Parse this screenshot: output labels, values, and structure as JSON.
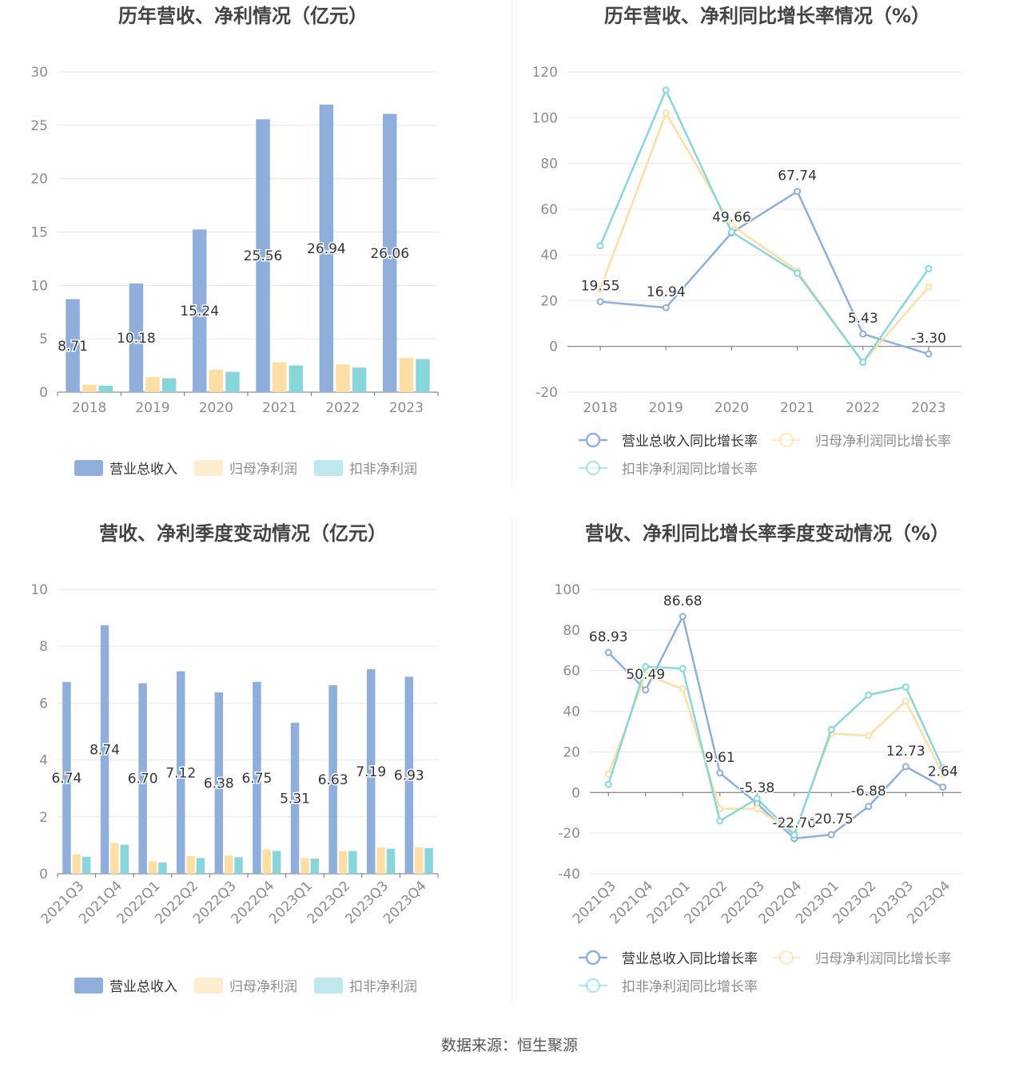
{
  "source_label": "数据来源：恒生聚源",
  "colors": {
    "revenue": "#8FAEDB",
    "netprofit": "#FDDFA6",
    "deducted": "#89D6DA"
  },
  "chart_data": [
    {
      "type": "bar",
      "title": "历年营收、净利情况（亿元）",
      "categories": [
        "2018",
        "2019",
        "2020",
        "2021",
        "2022",
        "2023"
      ],
      "ylim": [
        0,
        30
      ],
      "yticks": [
        0,
        5,
        10,
        15,
        20,
        25,
        30
      ],
      "legend": "bottom",
      "series": [
        {
          "name": "营业总收入",
          "color": "#8FAEDB",
          "labeled": true,
          "values": [
            8.71,
            10.18,
            15.24,
            25.56,
            26.94,
            26.06
          ]
        },
        {
          "name": "归母净利润",
          "color": "#FDDFA6",
          "labeled": false,
          "values": [
            0.7,
            1.4,
            2.1,
            2.8,
            2.6,
            3.2
          ]
        },
        {
          "name": "扣非净利润",
          "color": "#89D6DA",
          "labeled": false,
          "values": [
            0.6,
            1.3,
            1.9,
            2.5,
            2.3,
            3.1
          ]
        }
      ]
    },
    {
      "type": "line",
      "title": "历年营收、净利同比增长率情况（%）",
      "categories": [
        "2018",
        "2019",
        "2020",
        "2021",
        "2022",
        "2023"
      ],
      "ylim": [
        -20,
        120
      ],
      "yticks": [
        -20,
        0,
        20,
        40,
        60,
        80,
        100,
        120
      ],
      "legend": "bottom",
      "series": [
        {
          "name": "营业总收入同比增长率",
          "color": "#8FAEDB",
          "labeled": true,
          "values": [
            19.55,
            16.94,
            49.66,
            67.74,
            5.43,
            -3.3
          ]
        },
        {
          "name": "归母净利润同比增长率",
          "color": "#FDDFA6",
          "labeled": false,
          "values": [
            25,
            102,
            53,
            33,
            -7,
            26
          ]
        },
        {
          "name": "扣非净利润同比增长率",
          "color": "#89D6DA",
          "labeled": false,
          "values": [
            44,
            112,
            50,
            32,
            -7,
            34
          ]
        }
      ]
    },
    {
      "type": "bar",
      "title": "营收、净利季度变动情况（亿元）",
      "categories": [
        "2021Q3",
        "2021Q4",
        "2022Q1",
        "2022Q2",
        "2022Q3",
        "2022Q4",
        "2023Q1",
        "2023Q2",
        "2023Q3",
        "2023Q4"
      ],
      "ylim": [
        0,
        10
      ],
      "yticks": [
        0,
        2,
        4,
        6,
        8,
        10
      ],
      "legend": "bottom",
      "series": [
        {
          "name": "营业总收入",
          "color": "#8FAEDB",
          "labeled": true,
          "values": [
            6.74,
            8.74,
            6.7,
            7.12,
            6.38,
            6.75,
            5.31,
            6.63,
            7.19,
            6.93
          ]
        },
        {
          "name": "归母净利润",
          "color": "#FDDFA6",
          "labeled": false,
          "values": [
            0.68,
            1.08,
            0.44,
            0.62,
            0.64,
            0.85,
            0.55,
            0.8,
            0.92,
            0.93
          ]
        },
        {
          "name": "扣非净利润",
          "color": "#89D6DA",
          "labeled": false,
          "values": [
            0.6,
            1.02,
            0.4,
            0.55,
            0.58,
            0.8,
            0.53,
            0.8,
            0.88,
            0.9
          ]
        }
      ]
    },
    {
      "type": "line",
      "title": "营收、净利同比增长率季度变动情况（%）",
      "categories": [
        "2021Q3",
        "2021Q4",
        "2022Q1",
        "2022Q2",
        "2022Q3",
        "2022Q4",
        "2023Q1",
        "2023Q2",
        "2023Q3",
        "2023Q4"
      ],
      "ylim": [
        -40,
        100
      ],
      "yticks": [
        -40,
        -20,
        0,
        20,
        40,
        60,
        80,
        100
      ],
      "legend": "bottom",
      "series": [
        {
          "name": "营业总收入同比增长率",
          "color": "#8FAEDB",
          "labeled": true,
          "values": [
            68.93,
            50.49,
            86.68,
            9.61,
            -5.38,
            -22.7,
            -20.75,
            -6.88,
            12.73,
            2.64
          ]
        },
        {
          "name": "归母净利润同比增长率",
          "color": "#FDDFA6",
          "labeled": false,
          "values": [
            9,
            58,
            51,
            -8,
            -8,
            -20,
            29,
            28,
            45,
            9
          ]
        },
        {
          "name": "扣非净利润同比增长率",
          "color": "#89D6DA",
          "labeled": false,
          "values": [
            4,
            62,
            61,
            -14,
            -3,
            -21,
            31,
            48,
            52,
            12
          ]
        }
      ]
    }
  ]
}
